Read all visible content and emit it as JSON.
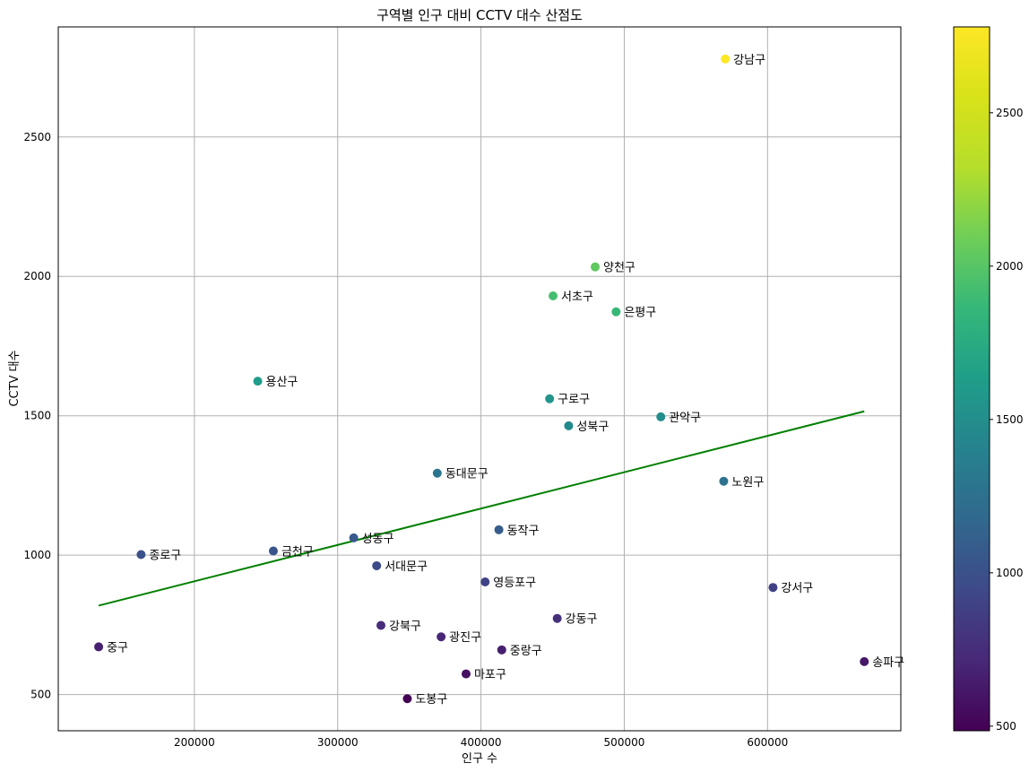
{
  "chart_data": {
    "type": "scatter",
    "title": "구역별 인구 대비 CCTV 대수 산점도",
    "xlabel": "인구 수",
    "ylabel": "CCTV 대수",
    "xlim": [
      105000,
      693000
    ],
    "ylim": [
      370,
      2895
    ],
    "xticks": [
      200000,
      300000,
      400000,
      500000,
      600000
    ],
    "yticks": [
      500,
      1000,
      1500,
      2000,
      2500
    ],
    "grid": true,
    "points": [
      {
        "name": "강남구",
        "x": 570500,
        "y": 2780
      },
      {
        "name": "양천구",
        "x": 479700,
        "y": 2034
      },
      {
        "name": "서초구",
        "x": 450300,
        "y": 1930
      },
      {
        "name": "은평구",
        "x": 494300,
        "y": 1873
      },
      {
        "name": "용산구",
        "x": 244200,
        "y": 1624
      },
      {
        "name": "구로구",
        "x": 447900,
        "y": 1561
      },
      {
        "name": "관악구",
        "x": 525500,
        "y": 1496
      },
      {
        "name": "성북구",
        "x": 461200,
        "y": 1464
      },
      {
        "name": "동대문구",
        "x": 369500,
        "y": 1294
      },
      {
        "name": "노원구",
        "x": 569400,
        "y": 1265
      },
      {
        "name": "동작구",
        "x": 412500,
        "y": 1091
      },
      {
        "name": "성동구",
        "x": 311200,
        "y": 1062
      },
      {
        "name": "금천구",
        "x": 255100,
        "y": 1015
      },
      {
        "name": "종로구",
        "x": 162800,
        "y": 1002
      },
      {
        "name": "서대문구",
        "x": 327200,
        "y": 962
      },
      {
        "name": "영등포구",
        "x": 402900,
        "y": 904
      },
      {
        "name": "강서구",
        "x": 603800,
        "y": 884
      },
      {
        "name": "강동구",
        "x": 453200,
        "y": 773
      },
      {
        "name": "강북구",
        "x": 330200,
        "y": 748
      },
      {
        "name": "광진구",
        "x": 372200,
        "y": 707
      },
      {
        "name": "중구",
        "x": 133200,
        "y": 671
      },
      {
        "name": "중랑구",
        "x": 414500,
        "y": 660
      },
      {
        "name": "송파구",
        "x": 667500,
        "y": 618
      },
      {
        "name": "마포구",
        "x": 389600,
        "y": 574
      },
      {
        "name": "도봉구",
        "x": 348600,
        "y": 485
      }
    ],
    "trendline": {
      "x": [
        133200,
        667500
      ],
      "y": [
        819,
        1516
      ],
      "color": "#008000"
    },
    "colorbar": {
      "range": [
        485,
        2780
      ],
      "ticks": [
        500,
        1000,
        1500,
        2000,
        2500
      ],
      "colormap": "viridis"
    }
  }
}
